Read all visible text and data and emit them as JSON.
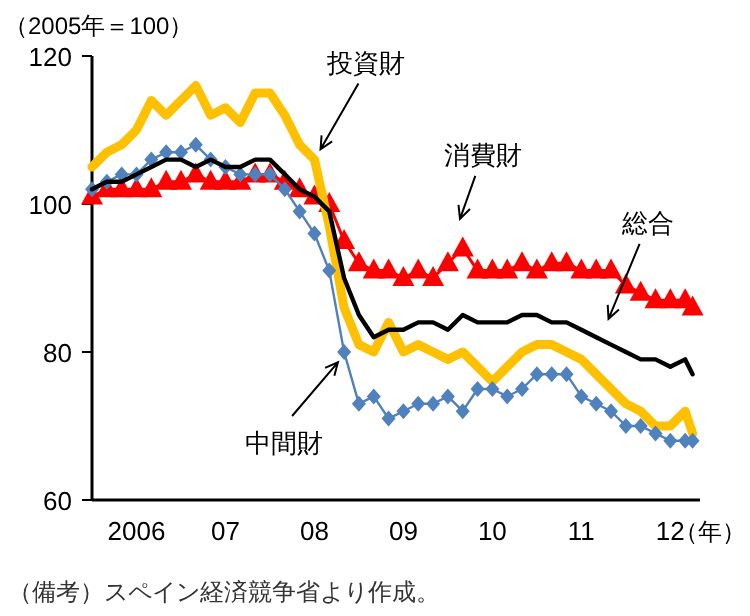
{
  "chart_data": {
    "type": "line",
    "ylabel": "（2005年＝100）",
    "xlabel": "（年）",
    "x": [
      "2006-01",
      "2006-03",
      "2006-05",
      "2006-07",
      "2006-09",
      "2006-11",
      "2007-01",
      "2007-03",
      "2007-05",
      "2007-07",
      "2007-09",
      "2007-11",
      "2008-01",
      "2008-03",
      "2008-05",
      "2008-07",
      "2008-09",
      "2008-11",
      "2009-01",
      "2009-03",
      "2009-05",
      "2009-07",
      "2009-09",
      "2009-11",
      "2010-01",
      "2010-03",
      "2010-05",
      "2010-07",
      "2010-09",
      "2010-11",
      "2011-01",
      "2011-03",
      "2011-05",
      "2011-07",
      "2011-09",
      "2011-11",
      "2012-01",
      "2012-03",
      "2012-05",
      "2012-07",
      "2012-09",
      "2012-10"
    ],
    "series": [
      {
        "color": "#ff0000",
        "marker": "triangle",
        "values": [
          101,
          102,
          102,
          102,
          102,
          103,
          103,
          104,
          103,
          103,
          103,
          104,
          104,
          103,
          102,
          101,
          100,
          95,
          92,
          91,
          91,
          90,
          91,
          90,
          92,
          94,
          91,
          91,
          91,
          92,
          91,
          92,
          92,
          91,
          91,
          91,
          89,
          88,
          87,
          87,
          87,
          86
        ]
      },
      {
        "color": "#ffc000",
        "values": [
          105,
          107,
          108,
          110,
          114,
          112,
          114,
          116,
          112,
          113,
          111,
          115,
          115,
          112,
          108,
          106,
          97,
          86,
          81,
          80,
          84,
          80,
          81,
          80,
          79,
          80,
          78,
          76,
          78,
          80,
          81,
          81,
          80,
          79,
          77,
          75,
          73,
          72,
          70,
          70,
          72,
          69
        ]
      },
      {
        "color": "#4f81bd",
        "marker": "diamond",
        "values": [
          102,
          103,
          104,
          104,
          106,
          107,
          107,
          108,
          106,
          105,
          104,
          104,
          104,
          102,
          99,
          96,
          91,
          80,
          73,
          74,
          71,
          72,
          73,
          73,
          74,
          72,
          75,
          75,
          74,
          75,
          77,
          77,
          77,
          74,
          73,
          72,
          70,
          70,
          69,
          68,
          68,
          68
        ]
      },
      {
        "color": "#000000",
        "values": [
          102,
          103,
          103,
          104,
          105,
          106,
          106,
          105,
          106,
          105,
          105,
          106,
          106,
          104,
          102,
          101,
          99,
          90,
          85,
          82,
          83,
          83,
          84,
          84,
          83,
          85,
          84,
          84,
          84,
          85,
          85,
          84,
          84,
          83,
          82,
          81,
          80,
          79,
          79,
          78,
          79,
          77
        ]
      }
    ],
    "xlim": [
      "2006-01",
      "2012-11"
    ],
    "xticks": [
      {
        "value": "2006-07",
        "label": "2006"
      },
      {
        "value": "2007-07",
        "label": "07"
      },
      {
        "value": "2008-07",
        "label": "08"
      },
      {
        "value": "2009-07",
        "label": "09"
      },
      {
        "value": "2010-07",
        "label": "10"
      },
      {
        "value": "2011-07",
        "label": "11"
      },
      {
        "value": "2012-07",
        "label": "12"
      }
    ],
    "ylim": [
      60,
      120
    ],
    "yticks": [
      60,
      80,
      100,
      120
    ],
    "grid": false,
    "annotations": [
      {
        "text": "投資財",
        "x": "2008-07",
        "y": 106
      },
      {
        "text": "消費財",
        "x": "2010-02",
        "y": 96.5
      },
      {
        "text": "総合",
        "x": "2011-10",
        "y": 83
      },
      {
        "text": "中間財",
        "x": "2008-11",
        "y": 80
      },
      "（備考）スペイン経済競争省より作成。"
    ]
  }
}
